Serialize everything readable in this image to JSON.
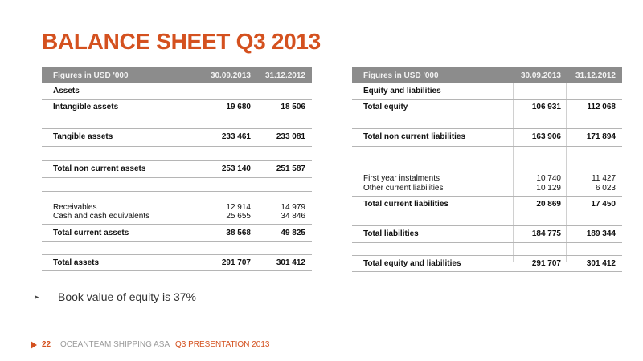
{
  "title": "BALANCE SHEET Q3 2013",
  "left_table": {
    "headers": [
      "Figures in USD '000",
      "30.09.2013",
      "31.12.2012"
    ],
    "section": "Assets",
    "rows": [
      {
        "label": "Intangible assets",
        "v1": "19 680",
        "v2": "18 506",
        "bold": true
      },
      {
        "label": "Tangible assets",
        "v1": "233 461",
        "v2": "233 081",
        "bold": true
      },
      {
        "label": "Total non current assets",
        "v1": "253 140",
        "v2": "251 587",
        "bold": true
      },
      {
        "label": "Receivables",
        "v1": "12 914",
        "v2": "14 979",
        "bold": false
      },
      {
        "label": "Cash and cash equivalents",
        "v1": "25 655",
        "v2": "34 846",
        "bold": false
      },
      {
        "label": "Total current assets",
        "v1": "38 568",
        "v2": "49 825",
        "bold": true
      },
      {
        "label": "Total assets",
        "v1": "291 707",
        "v2": "301 412",
        "bold": true
      }
    ]
  },
  "right_table": {
    "headers": [
      "Figures in USD '000",
      "30.09.2013",
      "31.12.2012"
    ],
    "section": "Equity and liabilities",
    "rows": [
      {
        "label": "Total equity",
        "v1": "106 931",
        "v2": "112 068",
        "bold": true
      },
      {
        "label": "Total non current liabilities",
        "v1": "163 906",
        "v2": "171 894",
        "bold": true
      },
      {
        "label": "First year instalments",
        "v1": "10 740",
        "v2": "11 427",
        "bold": false
      },
      {
        "label": "Other current liabilities",
        "v1": "10 129",
        "v2": "6 023",
        "bold": false
      },
      {
        "label": "Total current liabilities",
        "v1": "20 869",
        "v2": "17 450",
        "bold": true
      },
      {
        "label": "Total liabilities",
        "v1": "184 775",
        "v2": "189 344",
        "bold": true
      },
      {
        "label": "Total equity and liabilities",
        "v1": "291 707",
        "v2": "301 412",
        "bold": true
      }
    ]
  },
  "bullet": "Book value of equity is 37%",
  "footer": {
    "page": "22",
    "company": "OCEANTEAM SHIPPING ASA",
    "presentation": "Q3 PRESENTATION 2013"
  },
  "colors": {
    "accent": "#d4511f",
    "header_bg": "#8c8c8c"
  }
}
